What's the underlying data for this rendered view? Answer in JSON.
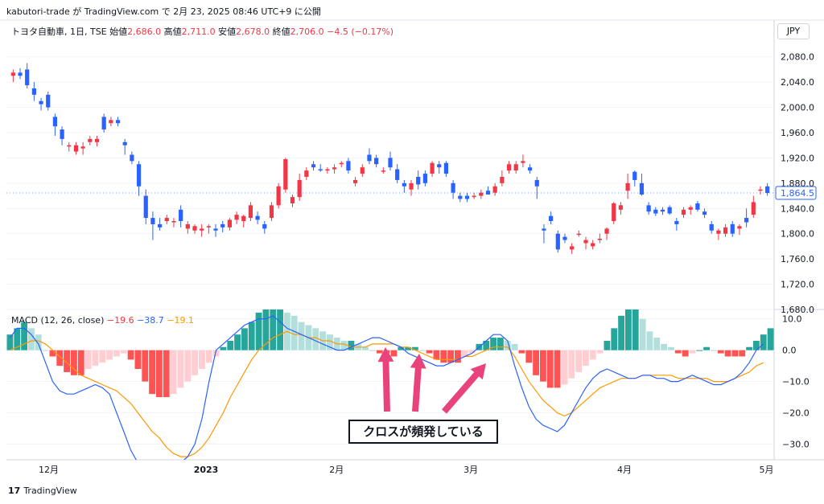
{
  "header": {
    "text": "kabutori-trade が TradingView.com で 2月 23, 2025 08:46 UTC+9 に公開"
  },
  "legend": {
    "symbol": "トヨタ自動車, 1日, TSE",
    "open_label": "始値",
    "open": "2,686.0",
    "high_label": "高値",
    "high": "2,711.0",
    "low_label": "安値",
    "low": "2,678.0",
    "close_label": "終値",
    "close": "2,706.0",
    "change": "−4.5 (−0.17%)"
  },
  "currency_button": "JPY",
  "macd_legend": {
    "label": "MACD (12, 26, close)",
    "hist": "−19.6",
    "macd": "−38.7",
    "signal": "−19.1"
  },
  "annotation": "クロスが頻発している",
  "footer": {
    "brand": "TradingView"
  },
  "colors": {
    "up": "#f23645",
    "down": "#2962ff",
    "hist_pos_strong": "#26a69a",
    "hist_pos_weak": "#b2dfdb",
    "hist_neg_strong": "#ff5252",
    "hist_neg_weak": "#ffcdd2",
    "macd_line": "#2962ff",
    "signal_line": "#ff9800",
    "arrow": "#e8437a"
  },
  "chart_data": [
    {
      "type": "candlestick",
      "title": "トヨタ自動車, 1日, TSE",
      "price_axis_ticks": [
        "2,080.0",
        "2,040.0",
        "2,000.0",
        "1,960.0",
        "1,920.0",
        "1,880.0",
        "1,840.0",
        "1,800.0",
        "1,760.0",
        "1,720.0",
        "1,680.0"
      ],
      "ylim": [
        1680,
        2100
      ],
      "last_price_label": "1,864.5",
      "x_ticks": [
        "12月",
        "2023",
        "2月",
        "3月",
        "4月",
        "5月"
      ],
      "candles": [
        [
          2050,
          2060,
          2040,
          2055
        ],
        [
          2055,
          2062,
          2045,
          2050
        ],
        [
          2060,
          2070,
          2030,
          2035
        ],
        [
          2030,
          2040,
          2010,
          2020
        ],
        [
          2010,
          2015,
          1995,
          2005
        ],
        [
          2020,
          2025,
          1995,
          2000
        ],
        [
          1985,
          1990,
          1955,
          1970
        ],
        [
          1965,
          1970,
          1940,
          1950
        ],
        [
          1938,
          1945,
          1930,
          1940
        ],
        [
          1930,
          1945,
          1925,
          1940
        ],
        [
          1935,
          1945,
          1925,
          1938
        ],
        [
          1945,
          1955,
          1940,
          1950
        ],
        [
          1945,
          1955,
          1938,
          1950
        ],
        [
          1985,
          1990,
          1960,
          1965
        ],
        [
          1975,
          1985,
          1970,
          1980
        ],
        [
          1980,
          1985,
          1970,
          1975
        ],
        [
          1945,
          1950,
          1925,
          1940
        ],
        [
          1925,
          1930,
          1910,
          1915
        ],
        [
          1910,
          1915,
          1860,
          1875
        ],
        [
          1860,
          1870,
          1815,
          1825
        ],
        [
          1825,
          1835,
          1790,
          1815
        ],
        [
          1815,
          1825,
          1805,
          1810
        ],
        [
          1820,
          1830,
          1815,
          1825
        ],
        [
          1818,
          1825,
          1810,
          1820
        ],
        [
          1838,
          1845,
          1810,
          1820
        ],
        [
          1808,
          1820,
          1800,
          1815
        ],
        [
          1805,
          1815,
          1800,
          1812
        ],
        [
          1805,
          1815,
          1795,
          1808
        ],
        [
          1810,
          1815,
          1800,
          1812
        ],
        [
          1808,
          1815,
          1795,
          1805
        ],
        [
          1815,
          1820,
          1802,
          1810
        ],
        [
          1810,
          1825,
          1805,
          1822
        ],
        [
          1822,
          1835,
          1815,
          1830
        ],
        [
          1820,
          1830,
          1810,
          1828
        ],
        [
          1825,
          1850,
          1820,
          1845
        ],
        [
          1828,
          1835,
          1815,
          1822
        ],
        [
          1815,
          1820,
          1800,
          1808
        ],
        [
          1825,
          1850,
          1820,
          1845
        ],
        [
          1845,
          1880,
          1840,
          1875
        ],
        [
          1870,
          1920,
          1865,
          1918
        ],
        [
          1848,
          1862,
          1842,
          1858
        ],
        [
          1858,
          1895,
          1852,
          1885
        ],
        [
          1890,
          1905,
          1885,
          1900
        ],
        [
          1910,
          1915,
          1900,
          1905
        ],
        [
          1902,
          1910,
          1898,
          1900
        ],
        [
          1900,
          1905,
          1895,
          1902
        ],
        [
          1902,
          1910,
          1895,
          1905
        ],
        [
          1910,
          1915,
          1905,
          1912
        ],
        [
          1915,
          1920,
          1895,
          1900
        ],
        [
          1880,
          1890,
          1875,
          1885
        ],
        [
          1895,
          1910,
          1890,
          1905
        ],
        [
          1925,
          1935,
          1910,
          1915
        ],
        [
          1920,
          1925,
          1905,
          1910
        ],
        [
          1900,
          1905,
          1895,
          1900
        ],
        [
          1920,
          1930,
          1900,
          1905
        ],
        [
          1902,
          1910,
          1880,
          1885
        ],
        [
          1880,
          1885,
          1865,
          1875
        ],
        [
          1870,
          1885,
          1860,
          1880
        ],
        [
          1890,
          1900,
          1870,
          1878
        ],
        [
          1895,
          1900,
          1875,
          1880
        ],
        [
          1895,
          1915,
          1890,
          1912
        ],
        [
          1910,
          1915,
          1895,
          1905
        ],
        [
          1912,
          1915,
          1890,
          1895
        ],
        [
          1880,
          1885,
          1855,
          1865
        ],
        [
          1860,
          1865,
          1850,
          1855
        ],
        [
          1860,
          1865,
          1850,
          1855
        ],
        [
          1858,
          1865,
          1855,
          1860
        ],
        [
          1860,
          1870,
          1855,
          1865
        ],
        [
          1868,
          1875,
          1862,
          1862
        ],
        [
          1865,
          1880,
          1860,
          1875
        ],
        [
          1880,
          1900,
          1875,
          1890
        ],
        [
          1900,
          1915,
          1895,
          1910
        ],
        [
          1900,
          1915,
          1895,
          1910
        ],
        [
          1912,
          1925,
          1905,
          1915
        ],
        [
          1905,
          1910,
          1895,
          1900
        ],
        [
          1885,
          1890,
          1855,
          1875
        ],
        [
          1808,
          1815,
          1785,
          1805
        ],
        [
          1828,
          1835,
          1815,
          1820
        ],
        [
          1800,
          1805,
          1770,
          1775
        ],
        [
          1795,
          1800,
          1785,
          1790
        ],
        [
          1775,
          1785,
          1768,
          1780
        ],
        [
          1800,
          1805,
          1795,
          1800
        ],
        [
          1785,
          1795,
          1775,
          1790
        ],
        [
          1780,
          1790,
          1775,
          1785
        ],
        [
          1790,
          1800,
          1785,
          1792
        ],
        [
          1800,
          1810,
          1790,
          1808
        ],
        [
          1820,
          1850,
          1815,
          1848
        ],
        [
          1838,
          1850,
          1830,
          1845
        ],
        [
          1868,
          1895,
          1855,
          1880
        ],
        [
          1898,
          1900,
          1875,
          1885
        ],
        [
          1880,
          1895,
          1860,
          1862
        ],
        [
          1845,
          1850,
          1830,
          1835
        ],
        [
          1838,
          1842,
          1828,
          1832
        ],
        [
          1838,
          1842,
          1830,
          1835
        ],
        [
          1842,
          1845,
          1830,
          1832
        ],
        [
          1820,
          1825,
          1805,
          1815
        ],
        [
          1830,
          1842,
          1825,
          1838
        ],
        [
          1838,
          1845,
          1830,
          1842
        ],
        [
          1848,
          1852,
          1835,
          1838
        ],
        [
          1835,
          1840,
          1825,
          1830
        ],
        [
          1815,
          1820,
          1800,
          1805
        ],
        [
          1800,
          1808,
          1790,
          1805
        ],
        [
          1800,
          1815,
          1795,
          1810
        ],
        [
          1815,
          1820,
          1795,
          1800
        ],
        [
          1808,
          1815,
          1798,
          1812
        ],
        [
          1825,
          1840,
          1810,
          1818
        ],
        [
          1830,
          1860,
          1825,
          1850
        ],
        [
          1868,
          1875,
          1862,
          1870
        ],
        [
          1875,
          1880,
          1860,
          1864.5
        ]
      ],
      "candle_fields": [
        "open",
        "high",
        "low",
        "close"
      ]
    },
    {
      "type": "bar+line",
      "title": "MACD (12, 26, close)",
      "axis_ticks": [
        "10.0",
        "0.0",
        "−10.0",
        "−20.0",
        "−30.0"
      ],
      "ylim": [
        -35,
        13
      ],
      "histogram": [
        5,
        7,
        9,
        7,
        5,
        0,
        -2,
        -5,
        -7,
        -8,
        -8,
        -6,
        -5,
        -4,
        -3,
        -2,
        -1,
        -3,
        -6,
        -10,
        -14,
        -15,
        -15,
        -14,
        -12,
        -10,
        -8,
        -6,
        -4,
        -2,
        1,
        3,
        5,
        7,
        9,
        12,
        13,
        13,
        13,
        12,
        11,
        9,
        8,
        7,
        6,
        5,
        4,
        3,
        3,
        2,
        1,
        0,
        -1,
        -1,
        -2,
        1,
        1,
        1,
        0,
        -1,
        -3,
        -4,
        -4,
        -4,
        -2,
        -1,
        2,
        3,
        4,
        4,
        3,
        2,
        -1,
        -4,
        -8,
        -10,
        -12,
        -12,
        -11,
        -9,
        -7,
        -5,
        -3,
        -1,
        3,
        7,
        11,
        13,
        13,
        10,
        6,
        4,
        2,
        1,
        -1,
        -2,
        -1,
        0,
        1,
        0,
        -1,
        -2,
        -2,
        -2,
        1,
        3,
        5,
        7
      ],
      "macd_line": [
        4,
        7,
        7,
        5,
        2,
        -4,
        -10,
        -13,
        -14,
        -14,
        -13,
        -12,
        -11,
        -12,
        -14,
        -20,
        -26,
        -32,
        -36,
        -38,
        -39,
        -39,
        -39,
        -38,
        -36,
        -34,
        -30,
        -22,
        -10,
        0,
        2,
        4,
        6,
        8,
        9,
        10,
        10,
        11,
        9,
        7,
        6,
        5,
        4,
        3,
        2,
        1,
        0,
        0,
        1,
        2,
        3,
        4,
        4,
        3,
        2,
        1,
        -1,
        -2,
        -3,
        -4,
        -5,
        -5,
        -4,
        -3,
        -2,
        -1,
        1,
        3,
        5,
        5,
        3,
        -5,
        -12,
        -18,
        -22,
        -24,
        -25,
        -26,
        -24,
        -20,
        -16,
        -12,
        -9,
        -7,
        -6,
        -7,
        -8,
        -9,
        -9,
        -8,
        -8,
        -9,
        -9,
        -10,
        -10,
        -9,
        -8,
        -9,
        -10,
        -11,
        -11,
        -10,
        -9,
        -7,
        -4,
        0,
        2
      ],
      "signal_line": [
        0,
        1,
        2,
        3,
        3,
        2,
        0,
        -2,
        -4,
        -6,
        -8,
        -9,
        -10,
        -11,
        -12,
        -13,
        -15,
        -17,
        -20,
        -23,
        -26,
        -28,
        -31,
        -33,
        -34,
        -34,
        -33,
        -31,
        -28,
        -24,
        -20,
        -15,
        -11,
        -7,
        -3,
        0,
        2,
        4,
        5,
        6,
        5,
        5,
        4,
        4,
        3,
        3,
        2,
        2,
        1,
        1,
        1,
        2,
        2,
        2,
        2,
        1,
        1,
        0,
        -1,
        -2,
        -3,
        -3,
        -3,
        -3,
        -2,
        -2,
        -1,
        0,
        1,
        1,
        1,
        -2,
        -6,
        -10,
        -13,
        -16,
        -18,
        -20,
        -21,
        -20,
        -18,
        -16,
        -14,
        -12,
        -11,
        -10,
        -9,
        -9,
        -9,
        -8,
        -8,
        -8,
        -8,
        -8,
        -9,
        -9,
        -9,
        -9,
        -9,
        -10,
        -10,
        -10,
        -9,
        -8,
        -7,
        -5,
        -4
      ]
    }
  ]
}
